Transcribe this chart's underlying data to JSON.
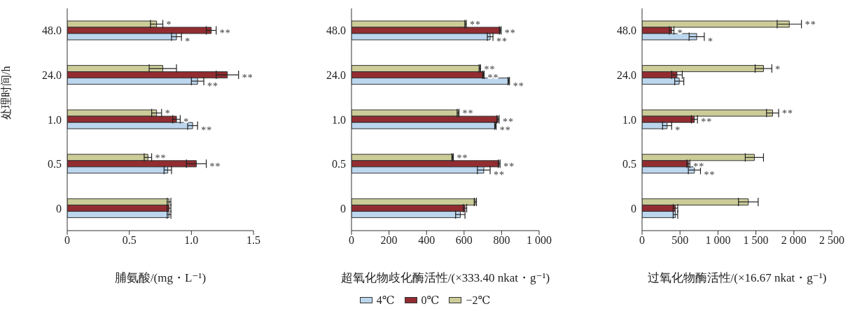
{
  "chart_data": [
    {
      "type": "bar",
      "orientation": "horizontal",
      "xlabel": "脯氨酸/(mg・L⁻¹)",
      "ylabel": "处理时间/h",
      "categories": [
        "48.0",
        "24.0",
        "1.0",
        "0.5",
        "0"
      ],
      "xlim": [
        0,
        1.5
      ],
      "xticks": [
        0,
        0.5,
        {
          "value": 1,
          "label": "1.0"
        },
        1.5
      ],
      "legend": "bottom",
      "series": [
        {
          "name": "4℃",
          "color": "#bcd6ee",
          "values": [
            0.88,
            1.05,
            1.01,
            0.81,
            0.82
          ],
          "errors": [
            0.04,
            0.05,
            0.04,
            0.03,
            0.015
          ]
        },
        {
          "name": "0℃",
          "color": "#922c31",
          "values": [
            1.16,
            1.29,
            0.88,
            1.04,
            0.82
          ],
          "errors": [
            0.04,
            0.09,
            0.03,
            0.08,
            0.015
          ]
        },
        {
          "name": "−2℃",
          "color": "#cccc99",
          "values": [
            0.72,
            0.77,
            0.72,
            0.65,
            0.82
          ],
          "errors": [
            0.05,
            0.11,
            0.04,
            0.03,
            0.015
          ]
        }
      ],
      "annotations": [
        {
          "text": "*",
          "x": 0.72,
          "y": "48.0"
        },
        {
          "text": "**",
          "x": 1.16,
          "y": "48.0"
        },
        {
          "text": "*",
          "x": 0.88,
          "y": "48.0"
        },
        {
          "text": "**",
          "x": 1.05,
          "y": "24.0"
        },
        {
          "text": "**",
          "x": 1.29,
          "y": "24.0"
        },
        {
          "text": "*",
          "x": 0.72,
          "y": "1.0"
        },
        {
          "text": "*",
          "x": 0.88,
          "y": "1.0"
        },
        {
          "text": "**",
          "x": 1.01,
          "y": "1.0"
        },
        {
          "text": "**",
          "x": 0.65,
          "y": "0.5"
        },
        {
          "text": "**",
          "x": 1.04,
          "y": "0.5"
        }
      ]
    },
    {
      "type": "bar",
      "orientation": "horizontal",
      "xlabel": "超氧化物歧化酶活性/(×333.40 nkat・g⁻¹)",
      "categories": [
        "48.0",
        "24.0",
        "1.0",
        "0.5",
        "0"
      ],
      "xlim": [
        0,
        1000
      ],
      "xticks": [
        0,
        200,
        400,
        600,
        800,
        {
          "value": 1000,
          "label": "1 000"
        }
      ],
      "series": [
        {
          "color": "#bcd6ee",
          "values": [
            739,
            838,
            767,
            705,
            580
          ],
          "errors": [
            15,
            4,
            4,
            34,
            25
          ]
        },
        {
          "color": "#922c31",
          "values": [
            793,
            703,
            781,
            787,
            605
          ],
          "errors": [
            5,
            4,
            6,
            5,
            9
          ]
        },
        {
          "color": "#cccc99",
          "values": [
            608,
            684,
            568,
            539,
            660
          ],
          "errors": [
            4,
            4,
            5,
            4,
            6
          ]
        }
      ],
      "annotations": [
        {
          "text": "**",
          "x": 608,
          "y": "48.0"
        },
        {
          "text": "**",
          "x": 793,
          "y": "48.0"
        },
        {
          "text": "**",
          "x": 739,
          "y": "48.0"
        },
        {
          "text": "**",
          "x": 684,
          "y": "24.0"
        },
        {
          "text": "**",
          "x": 703,
          "y": "24.0"
        },
        {
          "text": "**",
          "x": 838,
          "y": "24.0"
        },
        {
          "text": "**",
          "x": 568,
          "y": "1.0"
        },
        {
          "text": "**",
          "x": 781,
          "y": "1.0"
        },
        {
          "text": "**",
          "x": 767,
          "y": "1.0"
        },
        {
          "text": "**",
          "x": 539,
          "y": "0.5"
        },
        {
          "text": "**",
          "x": 787,
          "y": "0.5"
        },
        {
          "text": "**",
          "x": 705,
          "y": "0.5"
        }
      ]
    },
    {
      "type": "bar",
      "orientation": "horizontal",
      "xlabel": "过氧化物酶活性/(×16.67 nkat・g⁻¹)",
      "categories": [
        "48.0",
        "24.0",
        "1.0",
        "0.5",
        "0"
      ],
      "xlim": [
        0,
        2500
      ],
      "xticks": [
        0,
        500,
        {
          "value": 1000,
          "label": "1 000"
        },
        {
          "value": 1500,
          "label": "1 500"
        },
        {
          "value": 2000,
          "label": "2 000"
        },
        {
          "value": 2500,
          "label": "2 500"
        }
      ],
      "series": [
        {
          "color": "#bcd6ee",
          "values": [
            720,
            490,
            330,
            690,
            440
          ],
          "errors": [
            100,
            60,
            60,
            80,
            30
          ]
        },
        {
          "color": "#922c31",
          "values": [
            390,
            460,
            690,
            610,
            440
          ],
          "errors": [
            30,
            70,
            40,
            20,
            30
          ]
        },
        {
          "color": "#cccc99",
          "values": [
            1940,
            1600,
            1720,
            1480,
            1400
          ],
          "errors": [
            160,
            110,
            80,
            120,
            130
          ]
        }
      ],
      "annotations": [
        {
          "text": "**",
          "x": 1940,
          "y": "48.0"
        },
        {
          "text": "*",
          "x": 390,
          "y": "48.0"
        },
        {
          "text": "*",
          "x": 720,
          "y": "48.0"
        },
        {
          "text": "*",
          "x": 1600,
          "y": "24.0"
        },
        {
          "text": "**",
          "x": 1720,
          "y": "1.0"
        },
        {
          "text": "**",
          "x": 690,
          "y": "1.0"
        },
        {
          "text": "*",
          "x": 330,
          "y": "1.0"
        },
        {
          "text": "**",
          "x": 610,
          "y": "0.5"
        },
        {
          "text": "**",
          "x": 690,
          "y": "0.5"
        }
      ]
    }
  ]
}
